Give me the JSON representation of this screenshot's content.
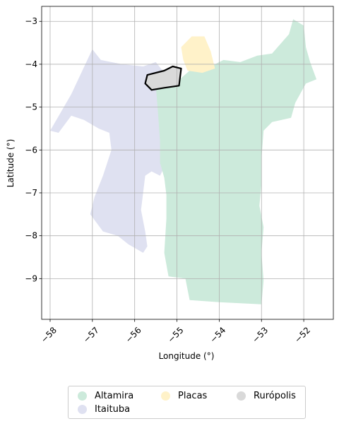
{
  "chart_data": {
    "type": "map",
    "xlabel": "Longitude (°)",
    "ylabel": "Latitude (°)",
    "xlim": [
      -58.2,
      -51.3
    ],
    "ylim": [
      -9.95,
      -2.65
    ],
    "grid": true,
    "x_ticks": [
      {
        "value": -58,
        "label": "−58"
      },
      {
        "value": -57,
        "label": "−57"
      },
      {
        "value": -56,
        "label": "−56"
      },
      {
        "value": -55,
        "label": "−55"
      },
      {
        "value": -54,
        "label": "−54"
      },
      {
        "value": -53,
        "label": "−53"
      },
      {
        "value": -52,
        "label": "−52"
      }
    ],
    "y_ticks": [
      {
        "value": -3,
        "label": "−3"
      },
      {
        "value": -4,
        "label": "−4"
      },
      {
        "value": -5,
        "label": "−5"
      },
      {
        "value": -6,
        "label": "−6"
      },
      {
        "value": -7,
        "label": "−7"
      },
      {
        "value": -8,
        "label": "−8"
      },
      {
        "value": -9,
        "label": "−9"
      }
    ],
    "regions": [
      {
        "name": "Itaituba",
        "color": "#dfe1f1",
        "coords": [
          [
            -57.0,
            -3.65
          ],
          [
            -56.8,
            -3.9
          ],
          [
            -56.3,
            -4.0
          ],
          [
            -55.8,
            -4.05
          ],
          [
            -55.5,
            -3.95
          ],
          [
            -55.3,
            -4.2
          ],
          [
            -55.05,
            -4.6
          ],
          [
            -55.0,
            -5.2
          ],
          [
            -55.15,
            -5.6
          ],
          [
            -55.1,
            -6.0
          ],
          [
            -55.3,
            -6.4
          ],
          [
            -55.4,
            -6.6
          ],
          [
            -55.6,
            -6.5
          ],
          [
            -55.75,
            -6.6
          ],
          [
            -55.85,
            -7.4
          ],
          [
            -55.75,
            -7.9
          ],
          [
            -55.7,
            -8.25
          ],
          [
            -55.8,
            -8.4
          ],
          [
            -56.15,
            -8.2
          ],
          [
            -56.4,
            -8.0
          ],
          [
            -56.75,
            -7.9
          ],
          [
            -57.05,
            -7.5
          ],
          [
            -56.95,
            -7.1
          ],
          [
            -56.75,
            -6.6
          ],
          [
            -56.55,
            -6.0
          ],
          [
            -56.6,
            -5.6
          ],
          [
            -56.85,
            -5.5
          ],
          [
            -57.2,
            -5.3
          ],
          [
            -57.5,
            -5.2
          ],
          [
            -57.8,
            -5.6
          ],
          [
            -58.0,
            -5.55
          ],
          [
            -57.5,
            -4.7
          ]
        ]
      },
      {
        "name": "Altamira",
        "color": "#cceadb",
        "coords": [
          [
            -55.5,
            -4.5
          ],
          [
            -55.05,
            -4.45
          ],
          [
            -54.7,
            -4.15
          ],
          [
            -54.2,
            -4.05
          ],
          [
            -53.9,
            -3.9
          ],
          [
            -53.5,
            -3.95
          ],
          [
            -53.1,
            -3.8
          ],
          [
            -52.75,
            -3.75
          ],
          [
            -52.35,
            -3.3
          ],
          [
            -52.25,
            -2.95
          ],
          [
            -52.0,
            -3.1
          ],
          [
            -51.95,
            -3.6
          ],
          [
            -51.85,
            -3.95
          ],
          [
            -51.7,
            -4.35
          ],
          [
            -51.95,
            -4.45
          ],
          [
            -52.2,
            -4.9
          ],
          [
            -52.3,
            -5.25
          ],
          [
            -52.75,
            -5.35
          ],
          [
            -52.95,
            -5.55
          ],
          [
            -53.0,
            -6.2
          ],
          [
            -53.0,
            -6.8
          ],
          [
            -53.05,
            -7.3
          ],
          [
            -52.95,
            -7.8
          ],
          [
            -53.0,
            -8.4
          ],
          [
            -52.95,
            -9.05
          ],
          [
            -53.0,
            -9.6
          ],
          [
            -54.0,
            -9.55
          ],
          [
            -54.7,
            -9.5
          ],
          [
            -54.8,
            -9.0
          ],
          [
            -55.2,
            -8.95
          ],
          [
            -55.3,
            -8.4
          ],
          [
            -55.25,
            -7.6
          ],
          [
            -55.25,
            -7.05
          ],
          [
            -55.3,
            -6.65
          ],
          [
            -55.4,
            -6.3
          ],
          [
            -55.4,
            -5.8
          ],
          [
            -55.45,
            -5.1
          ]
        ]
      },
      {
        "name": "Placas",
        "color": "#fff2c9",
        "coords": [
          [
            -54.9,
            -3.6
          ],
          [
            -54.65,
            -3.35
          ],
          [
            -54.35,
            -3.35
          ],
          [
            -54.2,
            -3.7
          ],
          [
            -54.1,
            -4.1
          ],
          [
            -54.4,
            -4.2
          ],
          [
            -54.75,
            -4.15
          ],
          [
            -54.85,
            -3.9
          ]
        ]
      },
      {
        "name": "Rurópolis",
        "color": "#d9d9d9",
        "coords": [
          [
            -55.7,
            -4.25
          ],
          [
            -55.3,
            -4.15
          ],
          [
            -55.1,
            -4.05
          ],
          [
            -54.9,
            -4.1
          ],
          [
            -54.95,
            -4.5
          ],
          [
            -55.3,
            -4.55
          ],
          [
            -55.6,
            -4.6
          ],
          [
            -55.75,
            -4.45
          ]
        ],
        "highlight": true
      }
    ],
    "legend": {
      "position": "bottom-center",
      "entries": [
        {
          "label": "Altamira",
          "color": "#cceadb"
        },
        {
          "label": "Itaituba",
          "color": "#dfe1f1"
        },
        {
          "label": "Placas",
          "color": "#fff2c9"
        },
        {
          "label": "Rurópolis",
          "color": "#d9d9d9"
        }
      ]
    }
  }
}
